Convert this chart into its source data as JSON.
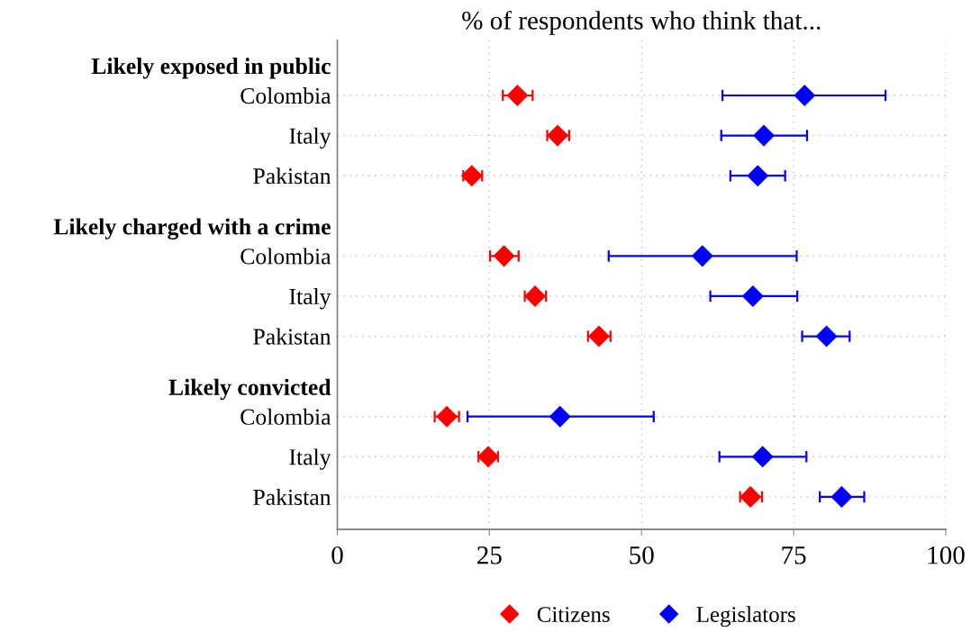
{
  "chart_data": {
    "type": "scatter",
    "orientation": "horizontal",
    "title": "% of respondents who think that...",
    "categories": [
      "Likely exposed in public",
      "Colombia",
      "Italy",
      "Pakistan",
      "Likely charged with a crime",
      "Colombia",
      "Italy",
      "Pakistan",
      "Likely convicted",
      "Colombia",
      "Italy",
      "Pakistan"
    ],
    "series": [
      {
        "name": "Citizens",
        "color": "#ff0000",
        "values": [
          null,
          29.6,
          36.2,
          22.1,
          null,
          27.4,
          32.5,
          43.0,
          null,
          18.0,
          24.8,
          67.9
        ],
        "errors": [
          null,
          [
            27.2,
            32.1
          ],
          [
            34.5,
            38.1
          ],
          [
            20.7,
            23.8
          ],
          null,
          [
            25.1,
            29.8
          ],
          [
            30.8,
            34.3
          ],
          [
            41.2,
            44.9
          ],
          null,
          [
            16.0,
            20.0
          ],
          [
            23.2,
            26.4
          ],
          [
            66.2,
            69.8
          ]
        ]
      },
      {
        "name": "Legislators",
        "color": "#0000ff",
        "values": [
          null,
          76.8,
          70.1,
          69.1,
          null,
          60.0,
          68.3,
          80.4,
          null,
          36.6,
          69.9,
          82.9
        ],
        "errors": [
          null,
          [
            63.3,
            90.1
          ],
          [
            63.1,
            77.2
          ],
          [
            64.6,
            73.6
          ],
          null,
          [
            44.6,
            75.5
          ],
          [
            61.3,
            75.6
          ],
          [
            76.4,
            84.2
          ],
          null,
          [
            21.4,
            52.0
          ],
          [
            62.8,
            77.1
          ],
          [
            79.3,
            86.6
          ]
        ]
      }
    ],
    "xlim": [
      0,
      100
    ],
    "xticks": [
      0,
      25,
      50,
      75,
      100
    ],
    "grid": true,
    "legend": "bottom",
    "marker": "diamond"
  }
}
